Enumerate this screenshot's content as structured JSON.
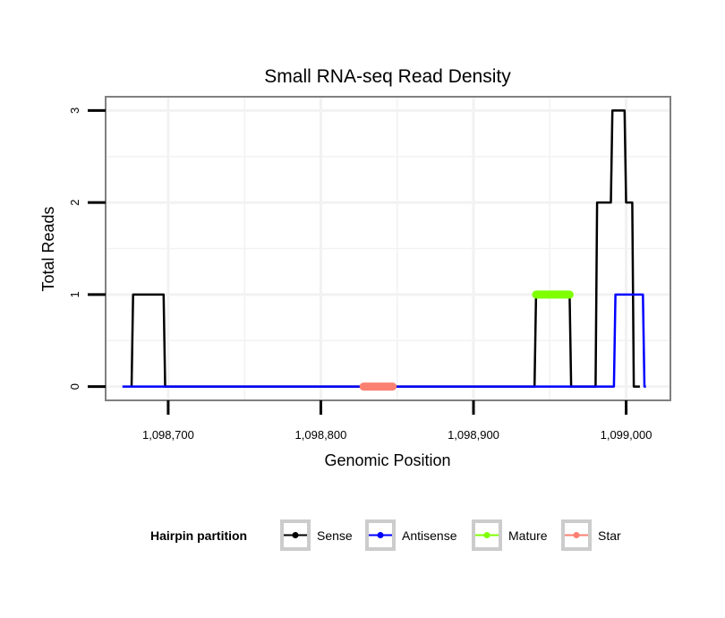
{
  "chart_data": {
    "type": "line",
    "title": "Small RNA-seq Read Density",
    "xlabel": "Genomic Position",
    "ylabel": "Total Reads",
    "xlim": [
      1098659,
      1099029
    ],
    "ylim": [
      -0.15,
      3.15
    ],
    "x_ticks": [
      1098700,
      1098800,
      1098900,
      1099000
    ],
    "x_tick_labels": [
      "1,098,700",
      "1,098,800",
      "1,098,900",
      "1,099,000"
    ],
    "y_ticks": [
      0,
      1,
      2,
      3
    ],
    "y_tick_labels": [
      "0",
      "1",
      "2",
      "3"
    ],
    "grid": true,
    "series": [
      {
        "name": "Sense",
        "color": "#000000",
        "points": [
          [
            1098676,
            0
          ],
          [
            1098677,
            1
          ],
          [
            1098697,
            1
          ],
          [
            1098698,
            0
          ],
          [
            1098940,
            0
          ],
          [
            1098941,
            1
          ],
          [
            1098963,
            1
          ],
          [
            1098964,
            0
          ],
          [
            1098980,
            0
          ],
          [
            1098981,
            2
          ],
          [
            1098990,
            2
          ],
          [
            1098991,
            3
          ],
          [
            1098999,
            3
          ],
          [
            1099000,
            2
          ],
          [
            1099004,
            2
          ],
          [
            1099005,
            0
          ],
          [
            1099009,
            0
          ]
        ]
      },
      {
        "name": "Antisense",
        "color": "#0000ff",
        "points": [
          [
            1098670,
            0
          ],
          [
            1098992,
            0
          ],
          [
            1098993,
            1
          ],
          [
            1099011,
            1
          ],
          [
            1099012,
            0
          ],
          [
            1099013,
            0
          ]
        ]
      },
      {
        "name": "Mature",
        "color": "#7fff00",
        "points": [
          [
            1098941,
            1
          ],
          [
            1098963,
            1
          ]
        ]
      },
      {
        "name": "Star",
        "color": "#fa8072",
        "points": [
          [
            1098828,
            0
          ],
          [
            1098847,
            0
          ]
        ]
      }
    ],
    "legend": {
      "title": "Hairpin partition",
      "position": "bottom",
      "entries": [
        "Sense",
        "Antisense",
        "Mature",
        "Star"
      ]
    }
  },
  "colors": {
    "panel_border": "#808080",
    "grid": "#f2f2f2",
    "legend_key_border": "#cccccc"
  }
}
